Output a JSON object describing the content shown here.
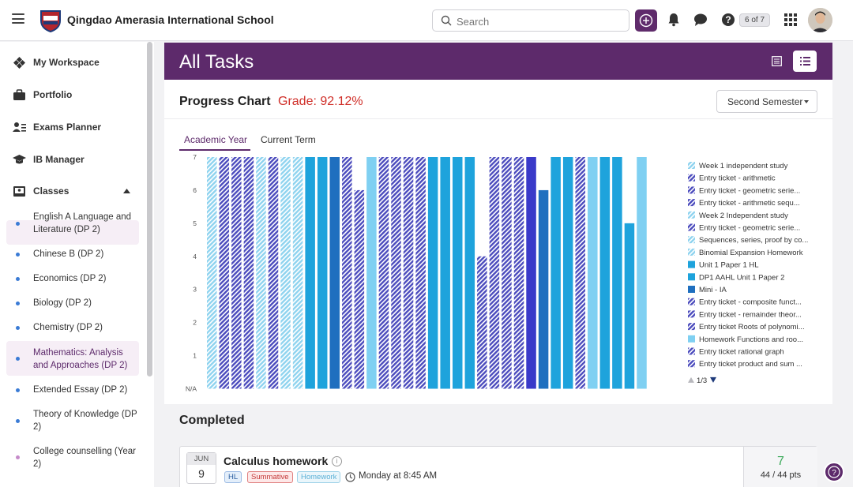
{
  "header": {
    "school_name": "Qingdao Amerasia International School",
    "search_placeholder": "Search",
    "page_indicator": "6 of 7"
  },
  "sidebar": {
    "items": [
      {
        "label": "My Workspace"
      },
      {
        "label": "Portfolio"
      },
      {
        "label": "Exams Planner"
      },
      {
        "label": "IB Manager"
      },
      {
        "label": "Classes"
      }
    ],
    "classes": [
      {
        "label": "English A Language and Literature (DP 2)",
        "color": "#3a7bd5"
      },
      {
        "label": "Chinese B (DP 2)",
        "color": "#3a7bd5"
      },
      {
        "label": "Economics (DP 2)",
        "color": "#3a7bd5"
      },
      {
        "label": "Biology (DP 2)",
        "color": "#3a7bd5"
      },
      {
        "label": "Chemistry (DP 2)",
        "color": "#3a7bd5"
      },
      {
        "label": "Mathematics: Analysis and Approaches (DP 2)",
        "color": "#3a7bd5"
      },
      {
        "label": "Extended Essay (DP 2)",
        "color": "#3a7bd5"
      },
      {
        "label": "Theory of Knowledge (DP 2)",
        "color": "#3a7bd5"
      },
      {
        "label": "College counselling (Year 2)",
        "color": "#c58ac9"
      }
    ]
  },
  "main": {
    "title": "All Tasks",
    "progress": {
      "title": "Progress Chart",
      "grade": "Grade: 92.12%",
      "semester": "Second Semester",
      "tabs": [
        {
          "label": "Academic Year"
        },
        {
          "label": "Current Term"
        }
      ]
    },
    "completed_title": "Completed",
    "task": {
      "month": "JUN",
      "day": "9",
      "title": "Calculus homework",
      "tags": [
        "HL",
        "Summative",
        "Homework"
      ],
      "time": "Monday at 8:45 AM",
      "score": "7",
      "points": "44 / 44 pts"
    }
  },
  "chart_data": {
    "type": "bar",
    "ylim": [
      0,
      7
    ],
    "y_ticks": [
      "N/A",
      "1",
      "2",
      "3",
      "4",
      "5",
      "6",
      "7"
    ],
    "legend_page": "1/3",
    "legend": [
      {
        "label": "Week 1 independent study",
        "color": "#8ed3ef",
        "pattern": true
      },
      {
        "label": "Entry ticket - arithmetic",
        "color": "#4b4bbd",
        "pattern": true
      },
      {
        "label": "Entry ticket - geometric serie...",
        "color": "#4b4bbd",
        "pattern": true
      },
      {
        "label": "Entry ticket - arithmetic sequ...",
        "color": "#4b4bbd",
        "pattern": true
      },
      {
        "label": "Week 2 Independent study",
        "color": "#8ed3ef",
        "pattern": true
      },
      {
        "label": "Entry ticket - geometric serie...",
        "color": "#4b4bbd",
        "pattern": true
      },
      {
        "label": "Sequences, series, proof by co...",
        "color": "#8ed3ef",
        "pattern": true
      },
      {
        "label": "Binomial Expansion Homework",
        "color": "#8ed3ef",
        "pattern": true
      },
      {
        "label": "Unit 1 Paper 1 HL",
        "color": "#1ea3dc",
        "pattern": false
      },
      {
        "label": "DP1 AAHL Unit 1 Paper 2",
        "color": "#1ea3dc",
        "pattern": false
      },
      {
        "label": "Mini - IA",
        "color": "#1f6fbf",
        "pattern": false
      },
      {
        "label": "Entry ticket - composite funct...",
        "color": "#4b4bbd",
        "pattern": true
      },
      {
        "label": "Entry ticket - remainder theor...",
        "color": "#4b4bbd",
        "pattern": true
      },
      {
        "label": "Entry ticket Roots of polynomi...",
        "color": "#4b4bbd",
        "pattern": true
      },
      {
        "label": "Homework Functions and roo...",
        "color": "#7fd0f2",
        "pattern": false
      },
      {
        "label": "Entry ticket rational graph",
        "color": "#4b4bbd",
        "pattern": true
      },
      {
        "label": "Entry ticket product and sum ...",
        "color": "#4b4bbd",
        "pattern": true
      }
    ],
    "bars": [
      {
        "value": 7,
        "color": "#8ed3ef",
        "pattern": true
      },
      {
        "value": 7,
        "color": "#4b4bbd",
        "pattern": true
      },
      {
        "value": 7,
        "color": "#4b4bbd",
        "pattern": true
      },
      {
        "value": 7,
        "color": "#4b4bbd",
        "pattern": true
      },
      {
        "value": 7,
        "color": "#8ed3ef",
        "pattern": true
      },
      {
        "value": 7,
        "color": "#4b4bbd",
        "pattern": true
      },
      {
        "value": 7,
        "color": "#8ed3ef",
        "pattern": true
      },
      {
        "value": 7,
        "color": "#8ed3ef",
        "pattern": true
      },
      {
        "value": 7,
        "color": "#1ea3dc",
        "pattern": false
      },
      {
        "value": 7,
        "color": "#1ea3dc",
        "pattern": false
      },
      {
        "value": 7,
        "color": "#1f6fbf",
        "pattern": false
      },
      {
        "value": 7,
        "color": "#4b4bbd",
        "pattern": true
      },
      {
        "value": 6,
        "color": "#4b4bbd",
        "pattern": true
      },
      {
        "value": 7,
        "color": "#7fd0f2",
        "pattern": false
      },
      {
        "value": 7,
        "color": "#4b4bbd",
        "pattern": true
      },
      {
        "value": 7,
        "color": "#4b4bbd",
        "pattern": true
      },
      {
        "value": 7,
        "color": "#4b4bbd",
        "pattern": true
      },
      {
        "value": 7,
        "color": "#4b4bbd",
        "pattern": true
      },
      {
        "value": 7,
        "color": "#1ea3dc",
        "pattern": false
      },
      {
        "value": 7,
        "color": "#1ea3dc",
        "pattern": false
      },
      {
        "value": 7,
        "color": "#1ea3dc",
        "pattern": false
      },
      {
        "value": 7,
        "color": "#1ea3dc",
        "pattern": false
      },
      {
        "value": 4,
        "color": "#4b4bbd",
        "pattern": true
      },
      {
        "value": 7,
        "color": "#4b4bbd",
        "pattern": true
      },
      {
        "value": 7,
        "color": "#4b4bbd",
        "pattern": true
      },
      {
        "value": 7,
        "color": "#4b4bbd",
        "pattern": true
      },
      {
        "value": 7,
        "color": "#3a3ac9",
        "pattern": false
      },
      {
        "value": 6,
        "color": "#1f6fbf",
        "pattern": false
      },
      {
        "value": 7,
        "color": "#1ea3dc",
        "pattern": false
      },
      {
        "value": 7,
        "color": "#1ea3dc",
        "pattern": false
      },
      {
        "value": 7,
        "color": "#4b4bbd",
        "pattern": true
      },
      {
        "value": 7,
        "color": "#7fd0f2",
        "pattern": false
      },
      {
        "value": 7,
        "color": "#1ea3dc",
        "pattern": false
      },
      {
        "value": 7,
        "color": "#1ea3dc",
        "pattern": false
      },
      {
        "value": 5,
        "color": "#1ea3dc",
        "pattern": false
      },
      {
        "value": 7,
        "color": "#7fd0f2",
        "pattern": false
      }
    ]
  }
}
